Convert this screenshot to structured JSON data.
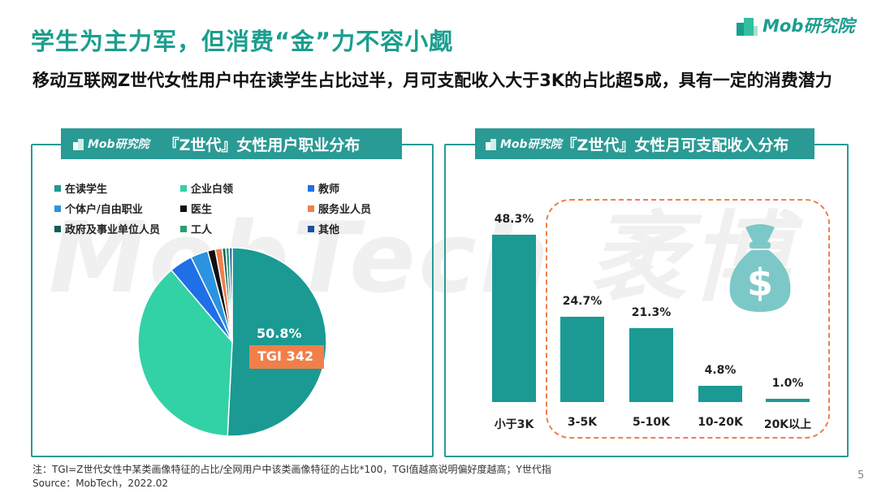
{
  "header": {
    "title": "学生为主力军，但消费“金”力不容小觑",
    "subtitle": "移动互联网Z世代女性用户中在读学生占比过半，月可支配收入大于3K的占比超5成，具有一定的消费潜力",
    "logo": "Mob研究院"
  },
  "watermark": "MobTech 袤博",
  "left_panel": {
    "tab_logo": "Mob研究院",
    "title": "『Z世代』女性用户职业分布",
    "slice_label": "50.8%",
    "tgi_label": "TGI 342"
  },
  "right_panel": {
    "tab_logo": "Mob研究院",
    "title": "『Z世代』女性月可支配收入分布",
    "icon": "money-bag-icon"
  },
  "chart_data": [
    {
      "type": "pie",
      "start": "top",
      "direction": "clockwise",
      "categories": [
        "在读学生",
        "企业白领",
        "教师",
        "个体户/自由职业",
        "医生",
        "服务业人员",
        "政府及事业单位人员",
        "工人",
        "其他"
      ],
      "values": [
        50.8,
        38.0,
        4.0,
        3.0,
        1.3,
        1.2,
        0.6,
        0.6,
        0.5
      ],
      "colors": [
        "#1a9a93",
        "#33d1a6",
        "#1f6fe6",
        "#2b93e0",
        "#111111",
        "#f07f4a",
        "#0f5f58",
        "#2a9e6e",
        "#1e4fa0"
      ],
      "annotations": [
        "50.8%",
        "TGI 342"
      ],
      "legend": "top"
    },
    {
      "type": "bar",
      "categories": [
        "小于3K",
        "3-5K",
        "5-10K",
        "10-20K",
        "20K以上"
      ],
      "values": [
        48.3,
        24.7,
        21.3,
        4.8,
        1.0
      ],
      "labels": [
        "48.3%",
        "24.7%",
        "21.3%",
        "4.8%",
        "1.0%"
      ],
      "color": "#1a9a93",
      "highlight_color": "#f07f4a"
    }
  ],
  "footer": {
    "note": "注：TGI=Z世代女性中某类画像特征的占比/全网用户中该类画像特征的占比*100，TGI值越高说明偏好度越高；Y世代指",
    "source": "Source：MobTech，2022.02",
    "page": "5"
  }
}
